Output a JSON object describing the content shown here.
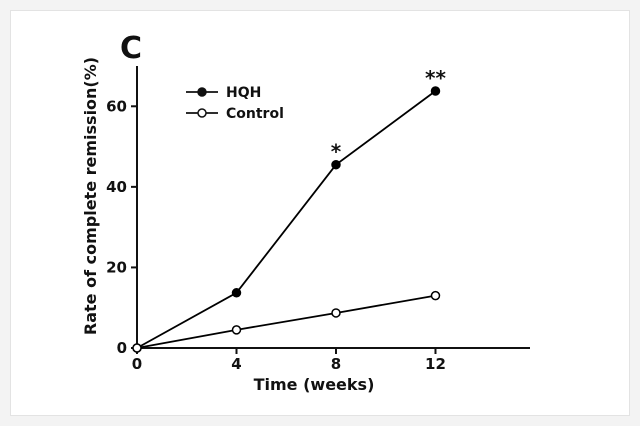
{
  "panel_label": "C",
  "chart_data": {
    "type": "line",
    "xlabel": "Time (weeks)",
    "ylabel": "Rate of complete remission(%)",
    "x": [
      0,
      4,
      8,
      12
    ],
    "xticks": [
      0,
      4,
      8,
      12
    ],
    "yticks": [
      0,
      20,
      40,
      60
    ],
    "xlim": [
      0,
      15.8
    ],
    "ylim": [
      0,
      70
    ],
    "grid": false,
    "legend_position": "top-left",
    "series": [
      {
        "name": "HQH",
        "marker": "filled-circle",
        "color": "#000000",
        "values": [
          0,
          13.7,
          45.5,
          63.8
        ]
      },
      {
        "name": "Control",
        "marker": "open-circle",
        "color": "#000000",
        "values": [
          0,
          4.5,
          8.7,
          13.0
        ]
      }
    ],
    "annotations": [
      {
        "text": "*",
        "x": 8,
        "series": "HQH"
      },
      {
        "text": "**",
        "x": 12,
        "series": "HQH"
      }
    ]
  }
}
